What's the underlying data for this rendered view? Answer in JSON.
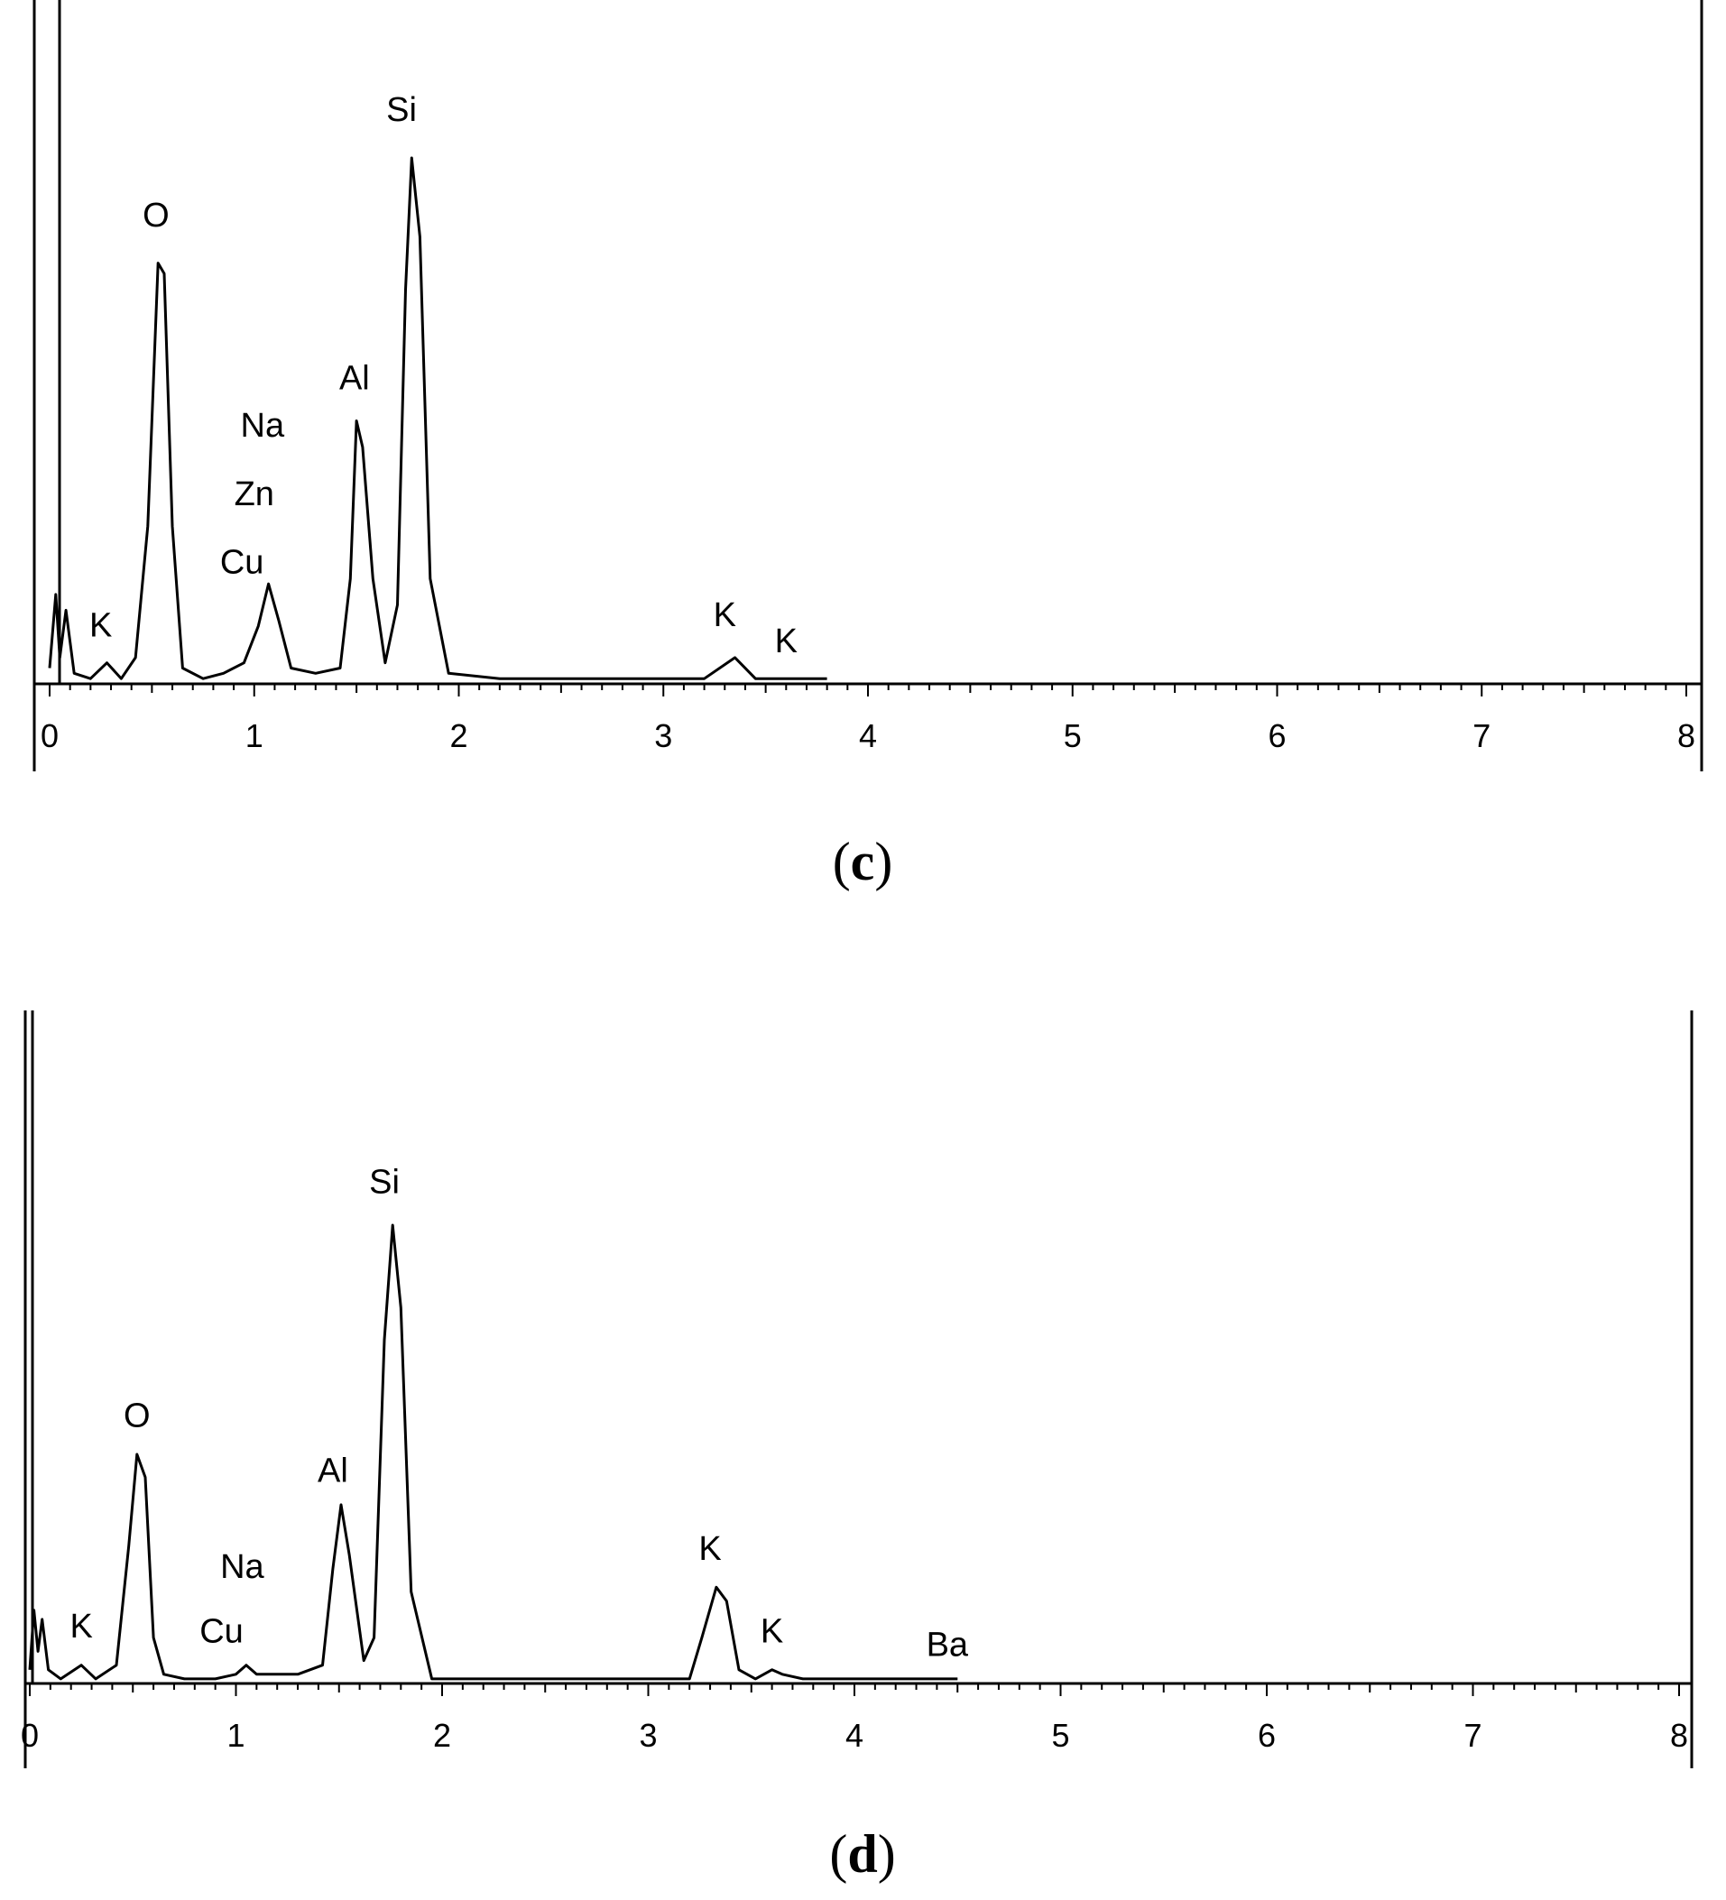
{
  "chart_data": [
    {
      "type": "line",
      "caption": "(c)",
      "caption_letter": "c",
      "xlim": [
        0,
        8
      ],
      "x_ticks": [
        "0",
        "1",
        "2",
        "3",
        "4",
        "5",
        "6",
        "7",
        "8"
      ],
      "ylim": [
        0,
        100
      ],
      "series": [
        {
          "points": [
            [
              0.0,
              3
            ],
            [
              0.03,
              17
            ],
            [
              0.05,
              5
            ],
            [
              0.08,
              14
            ],
            [
              0.12,
              2
            ],
            [
              0.2,
              1
            ],
            [
              0.28,
              4
            ],
            [
              0.35,
              1
            ],
            [
              0.42,
              5
            ],
            [
              0.48,
              30
            ],
            [
              0.53,
              80
            ],
            [
              0.56,
              78
            ],
            [
              0.6,
              30
            ],
            [
              0.65,
              3
            ],
            [
              0.75,
              1
            ],
            [
              0.85,
              2
            ],
            [
              0.95,
              4
            ],
            [
              1.02,
              11
            ],
            [
              1.07,
              19
            ],
            [
              1.12,
              12
            ],
            [
              1.18,
              3
            ],
            [
              1.3,
              2
            ],
            [
              1.42,
              3
            ],
            [
              1.47,
              20
            ],
            [
              1.5,
              50
            ],
            [
              1.53,
              45
            ],
            [
              1.58,
              20
            ],
            [
              1.64,
              4
            ],
            [
              1.7,
              15
            ],
            [
              1.74,
              75
            ],
            [
              1.77,
              100
            ],
            [
              1.81,
              85
            ],
            [
              1.86,
              20
            ],
            [
              1.95,
              2
            ],
            [
              2.2,
              1
            ],
            [
              3.2,
              1
            ],
            [
              3.35,
              5
            ],
            [
              3.45,
              1
            ],
            [
              3.6,
              1
            ],
            [
              3.8,
              1
            ]
          ]
        }
      ],
      "annotations": [
        {
          "text": "Si",
          "x": 1.72,
          "y": 107
        },
        {
          "text": "O",
          "x": 0.52,
          "y": 87
        },
        {
          "text": "Al",
          "x": 1.49,
          "y": 56
        },
        {
          "text": "Na",
          "x": 1.04,
          "y": 47
        },
        {
          "text": "Zn",
          "x": 1.0,
          "y": 34
        },
        {
          "text": "Cu",
          "x": 0.94,
          "y": 21
        },
        {
          "text": "K",
          "x": 0.25,
          "y": 9
        },
        {
          "text": "K",
          "x": 3.3,
          "y": 11
        },
        {
          "text": "K",
          "x": 3.6,
          "y": 6
        }
      ]
    },
    {
      "type": "line",
      "caption": "(d)",
      "caption_letter": "d",
      "xlim": [
        0,
        8
      ],
      "x_ticks": [
        "0",
        "1",
        "2",
        "3",
        "4",
        "5",
        "6",
        "7",
        "8"
      ],
      "ylim": [
        0,
        100
      ],
      "series": [
        {
          "points": [
            [
              0.0,
              3
            ],
            [
              0.02,
              16
            ],
            [
              0.04,
              7
            ],
            [
              0.06,
              14
            ],
            [
              0.09,
              3
            ],
            [
              0.15,
              1
            ],
            [
              0.25,
              4
            ],
            [
              0.32,
              1
            ],
            [
              0.42,
              4
            ],
            [
              0.48,
              30
            ],
            [
              0.52,
              50
            ],
            [
              0.56,
              45
            ],
            [
              0.6,
              10
            ],
            [
              0.65,
              2
            ],
            [
              0.75,
              1
            ],
            [
              0.9,
              1
            ],
            [
              1.0,
              2
            ],
            [
              1.05,
              4
            ],
            [
              1.1,
              2
            ],
            [
              1.3,
              2
            ],
            [
              1.42,
              4
            ],
            [
              1.47,
              25
            ],
            [
              1.51,
              39
            ],
            [
              1.55,
              28
            ],
            [
              1.62,
              5
            ],
            [
              1.67,
              10
            ],
            [
              1.72,
              75
            ],
            [
              1.76,
              100
            ],
            [
              1.8,
              82
            ],
            [
              1.85,
              20
            ],
            [
              1.95,
              1
            ],
            [
              2.4,
              1
            ],
            [
              3.2,
              1
            ],
            [
              3.26,
              10
            ],
            [
              3.33,
              21
            ],
            [
              3.38,
              18
            ],
            [
              3.44,
              3
            ],
            [
              3.52,
              1
            ],
            [
              3.6,
              3
            ],
            [
              3.65,
              2
            ],
            [
              3.75,
              1
            ],
            [
              4.45,
              1
            ],
            [
              4.5,
              1
            ]
          ]
        }
      ],
      "annotations": [
        {
          "text": "Si",
          "x": 1.72,
          "y": 107
        },
        {
          "text": "O",
          "x": 0.52,
          "y": 56
        },
        {
          "text": "Al",
          "x": 1.47,
          "y": 44
        },
        {
          "text": "Na",
          "x": 1.03,
          "y": 23
        },
        {
          "text": "Cu",
          "x": 0.93,
          "y": 9
        },
        {
          "text": "K",
          "x": 0.25,
          "y": 10
        },
        {
          "text": "K",
          "x": 3.3,
          "y": 27
        },
        {
          "text": "K",
          "x": 3.6,
          "y": 9
        },
        {
          "text": "Ba",
          "x": 4.45,
          "y": 6
        }
      ]
    }
  ]
}
